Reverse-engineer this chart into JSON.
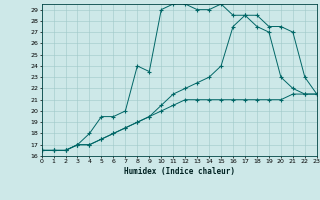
{
  "xlabel": "Humidex (Indice chaleur)",
  "background_color": "#cde8e8",
  "grid_color": "#a0c8c8",
  "line_color": "#006666",
  "xlim": [
    0,
    23
  ],
  "ylim": [
    16,
    29.5
  ],
  "yticks": [
    16,
    17,
    18,
    19,
    20,
    21,
    22,
    23,
    24,
    25,
    26,
    27,
    28,
    29
  ],
  "xticks": [
    0,
    1,
    2,
    3,
    4,
    5,
    6,
    7,
    8,
    9,
    10,
    11,
    12,
    13,
    14,
    15,
    16,
    17,
    18,
    19,
    20,
    21,
    22,
    23
  ],
  "line1_x": [
    0,
    1,
    2,
    3,
    4,
    5,
    6,
    7,
    8,
    9,
    10,
    11,
    12,
    13,
    14,
    15,
    16,
    17,
    18,
    19,
    20,
    21,
    22,
    23
  ],
  "line1_y": [
    16.5,
    16.5,
    16.5,
    17.0,
    17.0,
    17.5,
    18.0,
    18.5,
    19.0,
    19.5,
    20.0,
    20.5,
    21.0,
    21.0,
    21.0,
    21.0,
    21.0,
    21.0,
    21.0,
    21.0,
    21.0,
    21.5,
    21.5,
    21.5
  ],
  "line2_x": [
    0,
    1,
    2,
    3,
    4,
    5,
    6,
    7,
    8,
    9,
    10,
    11,
    12,
    13,
    14,
    15,
    16,
    17,
    18,
    19,
    20,
    21,
    22,
    23
  ],
  "line2_y": [
    16.5,
    16.5,
    16.5,
    17.0,
    18.0,
    19.5,
    19.5,
    20.0,
    24.0,
    23.5,
    29.0,
    29.5,
    29.5,
    29.0,
    29.0,
    29.5,
    28.5,
    28.5,
    28.5,
    27.5,
    27.5,
    27.0,
    23.0,
    21.5
  ],
  "line3_x": [
    0,
    1,
    2,
    3,
    4,
    5,
    6,
    7,
    8,
    9,
    10,
    11,
    12,
    13,
    14,
    15,
    16,
    17,
    18,
    19,
    20,
    21,
    22,
    23
  ],
  "line3_y": [
    16.5,
    16.5,
    16.5,
    17.0,
    17.0,
    17.5,
    18.0,
    18.5,
    19.0,
    19.5,
    20.5,
    21.5,
    22.0,
    22.5,
    23.0,
    24.0,
    27.5,
    28.5,
    27.5,
    27.0,
    23.0,
    22.0,
    21.5,
    21.5
  ]
}
